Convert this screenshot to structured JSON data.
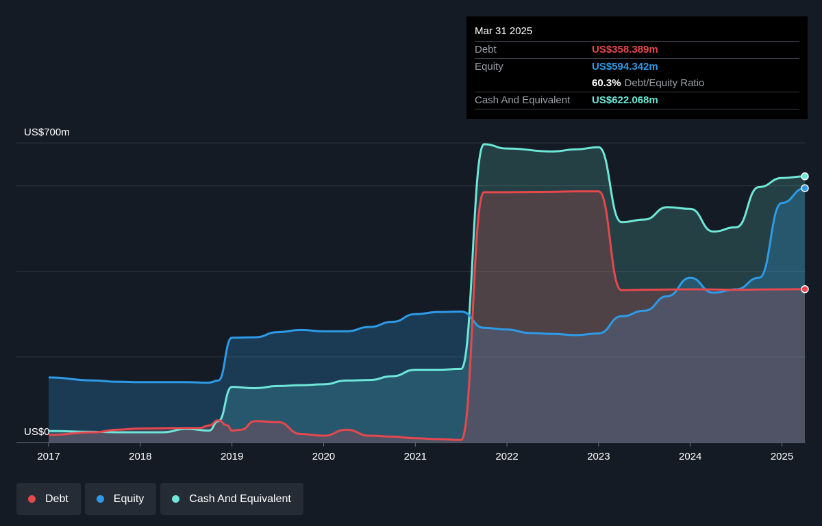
{
  "tooltip": {
    "date": "Mar 31 2025",
    "debt_label": "Debt",
    "debt_value": "US$358.389m",
    "equity_label": "Equity",
    "equity_value": "US$594.342m",
    "ratio_value": "60.3%",
    "ratio_label": "Debt/Equity Ratio",
    "cash_label": "Cash And Equivalent",
    "cash_value": "US$622.068m"
  },
  "legend": [
    {
      "label": "Debt",
      "color": "#e5484d"
    },
    {
      "label": "Equity",
      "color": "#2e9be8"
    },
    {
      "label": "Cash And Equivalent",
      "color": "#6ee7d8"
    }
  ],
  "chart_data": {
    "type": "area",
    "y_top_label": "US$700m",
    "y_bottom_label": "US$0",
    "ylim": [
      0,
      700
    ],
    "xlim": [
      2017,
      2025.25
    ],
    "x_ticks": [
      "2017",
      "2018",
      "2019",
      "2020",
      "2021",
      "2022",
      "2023",
      "2024",
      "2025"
    ],
    "grid": true,
    "series": [
      {
        "name": "Debt",
        "color": "#e5484d",
        "points": [
          [
            2017.0,
            18
          ],
          [
            2017.5,
            24
          ],
          [
            2017.75,
            30
          ],
          [
            2018.0,
            33
          ],
          [
            2018.5,
            34
          ],
          [
            2018.65,
            34
          ],
          [
            2018.75,
            40
          ],
          [
            2018.85,
            52
          ],
          [
            2018.95,
            40
          ],
          [
            2019.0,
            28
          ],
          [
            2019.1,
            30
          ],
          [
            2019.25,
            50
          ],
          [
            2019.5,
            48
          ],
          [
            2019.75,
            20
          ],
          [
            2020.0,
            16
          ],
          [
            2020.25,
            30
          ],
          [
            2020.5,
            16
          ],
          [
            2020.75,
            14
          ],
          [
            2021.0,
            10
          ],
          [
            2021.25,
            8
          ],
          [
            2021.5,
            6
          ],
          [
            2021.75,
            585
          ],
          [
            2022.0,
            585
          ],
          [
            2022.5,
            586
          ],
          [
            2022.75,
            587
          ],
          [
            2023.0,
            587
          ],
          [
            2023.25,
            356
          ],
          [
            2023.5,
            357
          ],
          [
            2024.0,
            358
          ],
          [
            2024.5,
            357
          ],
          [
            2025.0,
            358
          ],
          [
            2025.25,
            358.389
          ]
        ]
      },
      {
        "name": "Equity",
        "color": "#2e9be8",
        "points": [
          [
            2017.0,
            152
          ],
          [
            2017.5,
            145
          ],
          [
            2017.75,
            142
          ],
          [
            2018.0,
            141
          ],
          [
            2018.5,
            141
          ],
          [
            2018.75,
            140
          ],
          [
            2018.85,
            145
          ],
          [
            2019.0,
            245
          ],
          [
            2019.25,
            246
          ],
          [
            2019.5,
            258
          ],
          [
            2019.75,
            263
          ],
          [
            2020.0,
            260
          ],
          [
            2020.25,
            260
          ],
          [
            2020.5,
            270
          ],
          [
            2020.75,
            282
          ],
          [
            2021.0,
            300
          ],
          [
            2021.25,
            305
          ],
          [
            2021.5,
            306
          ],
          [
            2021.75,
            268
          ],
          [
            2022.0,
            264
          ],
          [
            2022.25,
            256
          ],
          [
            2022.5,
            254
          ],
          [
            2022.75,
            251
          ],
          [
            2023.0,
            255
          ],
          [
            2023.25,
            295
          ],
          [
            2023.5,
            308
          ],
          [
            2023.75,
            342
          ],
          [
            2024.0,
            385
          ],
          [
            2024.25,
            350
          ],
          [
            2024.5,
            358
          ],
          [
            2024.75,
            385
          ],
          [
            2025.0,
            560
          ],
          [
            2025.25,
            594.342
          ]
        ]
      },
      {
        "name": "Cash And Equivalent",
        "color": "#6ee7d8",
        "points": [
          [
            2017.0,
            27
          ],
          [
            2017.5,
            25
          ],
          [
            2017.75,
            24
          ],
          [
            2018.0,
            24
          ],
          [
            2018.25,
            24
          ],
          [
            2018.5,
            32
          ],
          [
            2018.75,
            28
          ],
          [
            2018.85,
            50
          ],
          [
            2019.0,
            130
          ],
          [
            2019.25,
            127
          ],
          [
            2019.5,
            132
          ],
          [
            2019.75,
            134
          ],
          [
            2020.0,
            136
          ],
          [
            2020.25,
            145
          ],
          [
            2020.5,
            146
          ],
          [
            2020.75,
            155
          ],
          [
            2021.0,
            170
          ],
          [
            2021.25,
            170
          ],
          [
            2021.5,
            172
          ],
          [
            2021.75,
            697
          ],
          [
            2022.0,
            687
          ],
          [
            2022.5,
            680
          ],
          [
            2022.75,
            685
          ],
          [
            2023.0,
            690
          ],
          [
            2023.25,
            515
          ],
          [
            2023.5,
            521
          ],
          [
            2023.75,
            550
          ],
          [
            2024.0,
            546
          ],
          [
            2024.25,
            493
          ],
          [
            2024.5,
            503
          ],
          [
            2024.75,
            597
          ],
          [
            2025.0,
            618
          ],
          [
            2025.25,
            622.068
          ]
        ]
      }
    ]
  }
}
